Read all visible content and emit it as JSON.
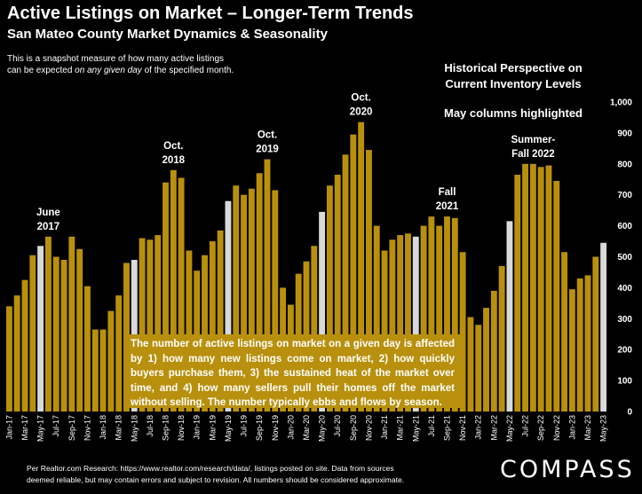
{
  "header": {
    "title": "Active Listings on Market – Longer-Term Trends",
    "subtitle": "San Mateo County Market Dynamics & Seasonality",
    "note_line1": "This is a snapshot measure of how many active listings",
    "note_line2_pre": "can be expected ",
    "note_line2_em": "on any given day",
    "note_line2_post": " of the specified month."
  },
  "side": {
    "historical_line1": "Historical Perspective on",
    "historical_line2": "Current Inventory Levels",
    "may_note": "May columns highlighted"
  },
  "callout": "The number of active listings on market on a given day is affected by 1) how many new listings come on market, 2) how quickly buyers purchase them, 3) the sustained heat of the market over time, and 4) how many sellers pull their homes off the market without selling. The number typically ebbs and flows by season.",
  "footer": {
    "line1": "Per Realtor.com Research:  https://www.realtor.com/research/data/, listings posted on site. Data from sources",
    "line2": "deemed reliable, but may contain errors and subject to revision. All numbers should be considered approximate."
  },
  "logo": "COMPASS",
  "colors": {
    "bar": "#b8900d",
    "highlight": "#d9d9d9",
    "background": "#000000"
  },
  "chart_data": {
    "type": "bar",
    "ylim": [
      0,
      1000
    ],
    "yticks": [
      "0",
      "100",
      "200",
      "300",
      "400",
      "500",
      "600",
      "700",
      "800",
      "900",
      "1,000"
    ],
    "x": [
      "Jan-17",
      "Feb-17",
      "Mar-17",
      "Apr-17",
      "May-17",
      "Jun-17",
      "Jul-17",
      "Aug-17",
      "Sep-17",
      "Oct-17",
      "Nov-17",
      "Dec-17",
      "Jan-18",
      "Feb-18",
      "Mar-18",
      "Apr-18",
      "May-18",
      "Jun-18",
      "Jul-18",
      "Aug-18",
      "Sep-18",
      "Oct-18",
      "Nov-18",
      "Dec-18",
      "Jan-19",
      "Feb-19",
      "Mar-19",
      "Apr-19",
      "May-19",
      "Jun-19",
      "Jul-19",
      "Aug-19",
      "Sep-19",
      "Oct-19",
      "Nov-19",
      "Dec-19",
      "Jan-20",
      "Feb-20",
      "Mar-20",
      "Apr-20",
      "May-20",
      "Jun-20",
      "Jul-20",
      "Aug-20",
      "Sep-20",
      "Oct-20",
      "Nov-20",
      "Dec-20",
      "Jan-21",
      "Feb-21",
      "Mar-21",
      "Apr-21",
      "May-21",
      "Jun-21",
      "Jul-21",
      "Aug-21",
      "Sep-21",
      "Oct-21",
      "Nov-21",
      "Dec-21",
      "Jan-22",
      "Feb-22",
      "Mar-22",
      "Apr-22",
      "May-22",
      "Jun-22",
      "Jul-22",
      "Aug-22",
      "Sep-22",
      "Oct-22",
      "Nov-22",
      "Dec-22",
      "Jan-23",
      "Feb-23",
      "Mar-23",
      "Apr-23",
      "May-23"
    ],
    "values": [
      340,
      375,
      425,
      505,
      535,
      565,
      500,
      490,
      565,
      525,
      405,
      265,
      265,
      325,
      375,
      480,
      490,
      560,
      555,
      570,
      740,
      780,
      755,
      520,
      455,
      505,
      550,
      585,
      680,
      730,
      700,
      720,
      770,
      815,
      715,
      400,
      345,
      445,
      485,
      535,
      645,
      730,
      765,
      830,
      895,
      935,
      845,
      600,
      520,
      555,
      570,
      575,
      565,
      600,
      630,
      600,
      630,
      625,
      515,
      305,
      280,
      335,
      390,
      470,
      615,
      765,
      800,
      800,
      790,
      795,
      745,
      515,
      395,
      430,
      440,
      500,
      545
    ],
    "highlight_labels": [
      "May-17",
      "May-18",
      "May-19",
      "May-20",
      "May-21",
      "May-22",
      "May-23"
    ],
    "tick_labels": [
      "Jan-17",
      "Mar-17",
      "May-17",
      "Jul-17",
      "Sep-17",
      "Nov-17",
      "Jan-18",
      "Mar-18",
      "May-18",
      "Jul-18",
      "Sep-18",
      "Nov-18",
      "Jan-19",
      "Mar-19",
      "May-19",
      "Jul-19",
      "Sep-19",
      "Nov-19",
      "Jan-20",
      "Mar-20",
      "May-20",
      "Jul-20",
      "Sep-20",
      "Nov-20",
      "Jan-21",
      "Mar-21",
      "May-21",
      "Jul-21",
      "Sep-21",
      "Nov-21",
      "Jan-22",
      "Mar-22",
      "May-22",
      "Jul-22",
      "Sep-22",
      "Nov-22",
      "Jan-23",
      "Mar-23",
      "May-23"
    ],
    "annotations": [
      {
        "lines": [
          "June",
          "2017"
        ],
        "at": "Jun-17"
      },
      {
        "lines": [
          "Oct.",
          "2018"
        ],
        "at": "Oct-18"
      },
      {
        "lines": [
          "Oct.",
          "2019"
        ],
        "at": "Oct-19"
      },
      {
        "lines": [
          "Oct.",
          "2020"
        ],
        "at": "Oct-20"
      },
      {
        "lines": [
          "Fall",
          "2021"
        ],
        "at": "Sep-21"
      },
      {
        "lines": [
          "Summer-",
          "Fall 2022"
        ],
        "at": "Aug-22"
      }
    ]
  }
}
